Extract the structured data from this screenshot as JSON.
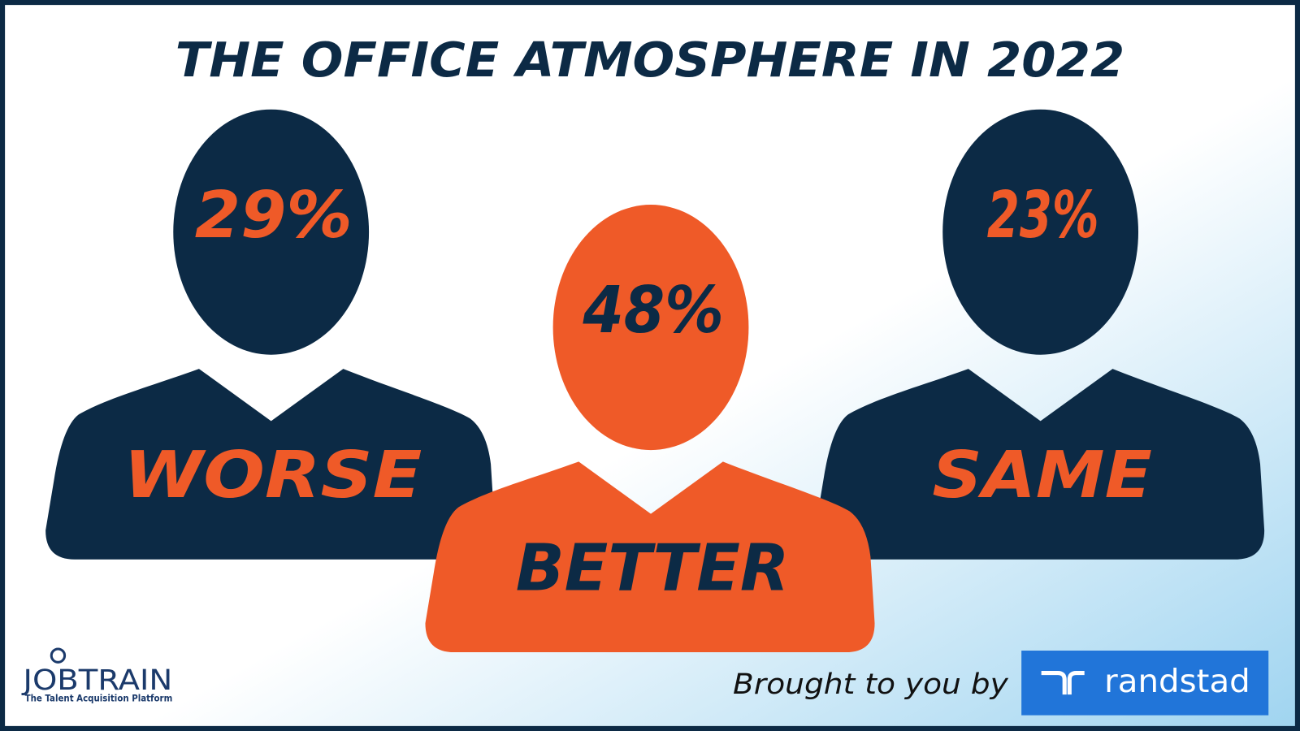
{
  "title": "THE OFFICE ATMOSPHERE IN 2022",
  "figures": [
    {
      "value": "29%",
      "label": "WORSE"
    },
    {
      "value": "48%",
      "label": "BETTER"
    },
    {
      "value": "23%",
      "label": "SAME"
    }
  ],
  "footer": {
    "logo": "JOBTRAIN",
    "tagline": "The Talent Acquisition Platform",
    "credit": "Brought to you by",
    "sponsor": "randstad"
  }
}
